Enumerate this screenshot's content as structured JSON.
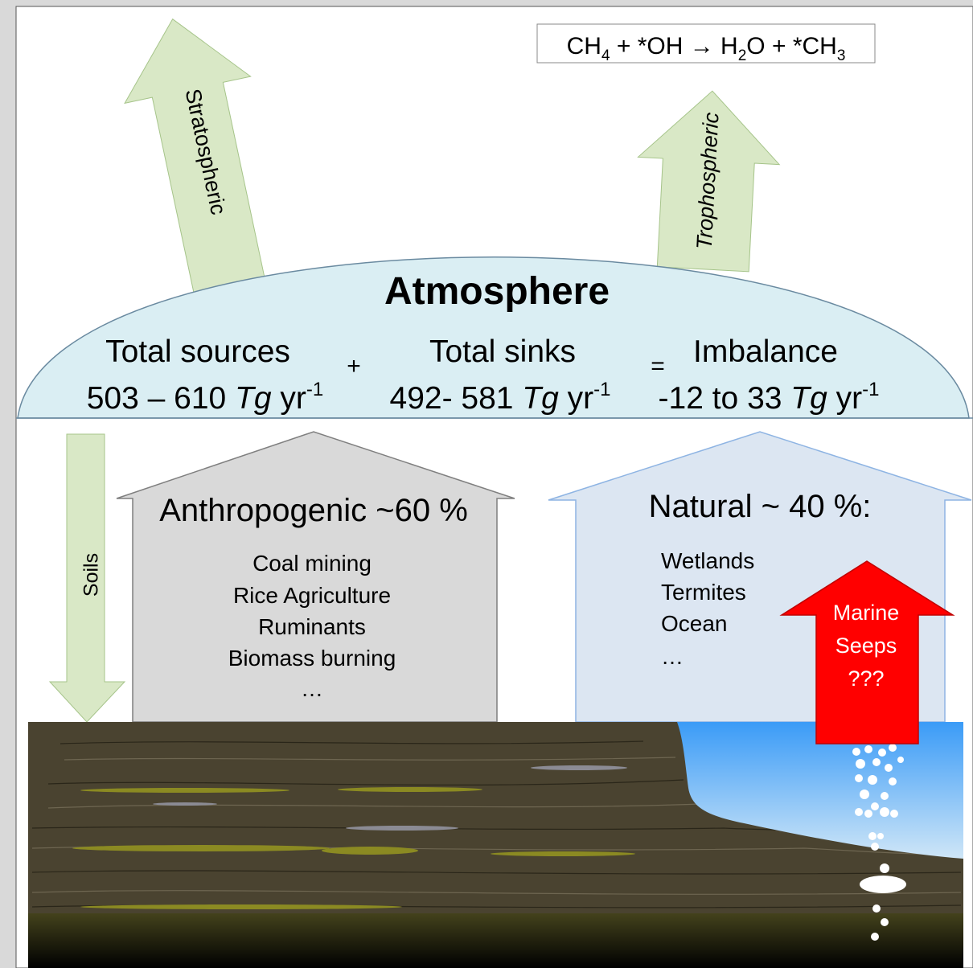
{
  "equation": [
    "CH",
    "4",
    " + *OH → H",
    "2",
    "O + *CH",
    "3"
  ],
  "arrows": {
    "stratospheric": "Stratospheric",
    "trophospheric": "Trophospheric",
    "soils": "Soils"
  },
  "atmosphere": {
    "title": "Atmosphere",
    "sources": {
      "label": "Total sources",
      "value": [
        "503 – 610 ",
        "Tg",
        " yr",
        "-1"
      ]
    },
    "plus": "+",
    "sinks": {
      "label": "Total sinks",
      "value": [
        "492- 581 ",
        "Tg",
        " yr",
        "-1"
      ]
    },
    "equals": "=",
    "imbalance": {
      "label": "Imbalance",
      "value": [
        "-12 to 33 ",
        "Tg",
        " yr",
        "-1"
      ]
    }
  },
  "anthropogenic": {
    "title": "Anthropogenic ~60 %",
    "items": [
      "Coal mining",
      "Rice Agriculture",
      "Ruminants",
      "Biomass burning",
      "…"
    ]
  },
  "natural": {
    "title": "Natural ~ 40 %:",
    "items": [
      "Wetlands",
      "Termites",
      "Ocean",
      "…"
    ]
  },
  "marine": [
    "Marine",
    "Seeps",
    "???"
  ]
}
